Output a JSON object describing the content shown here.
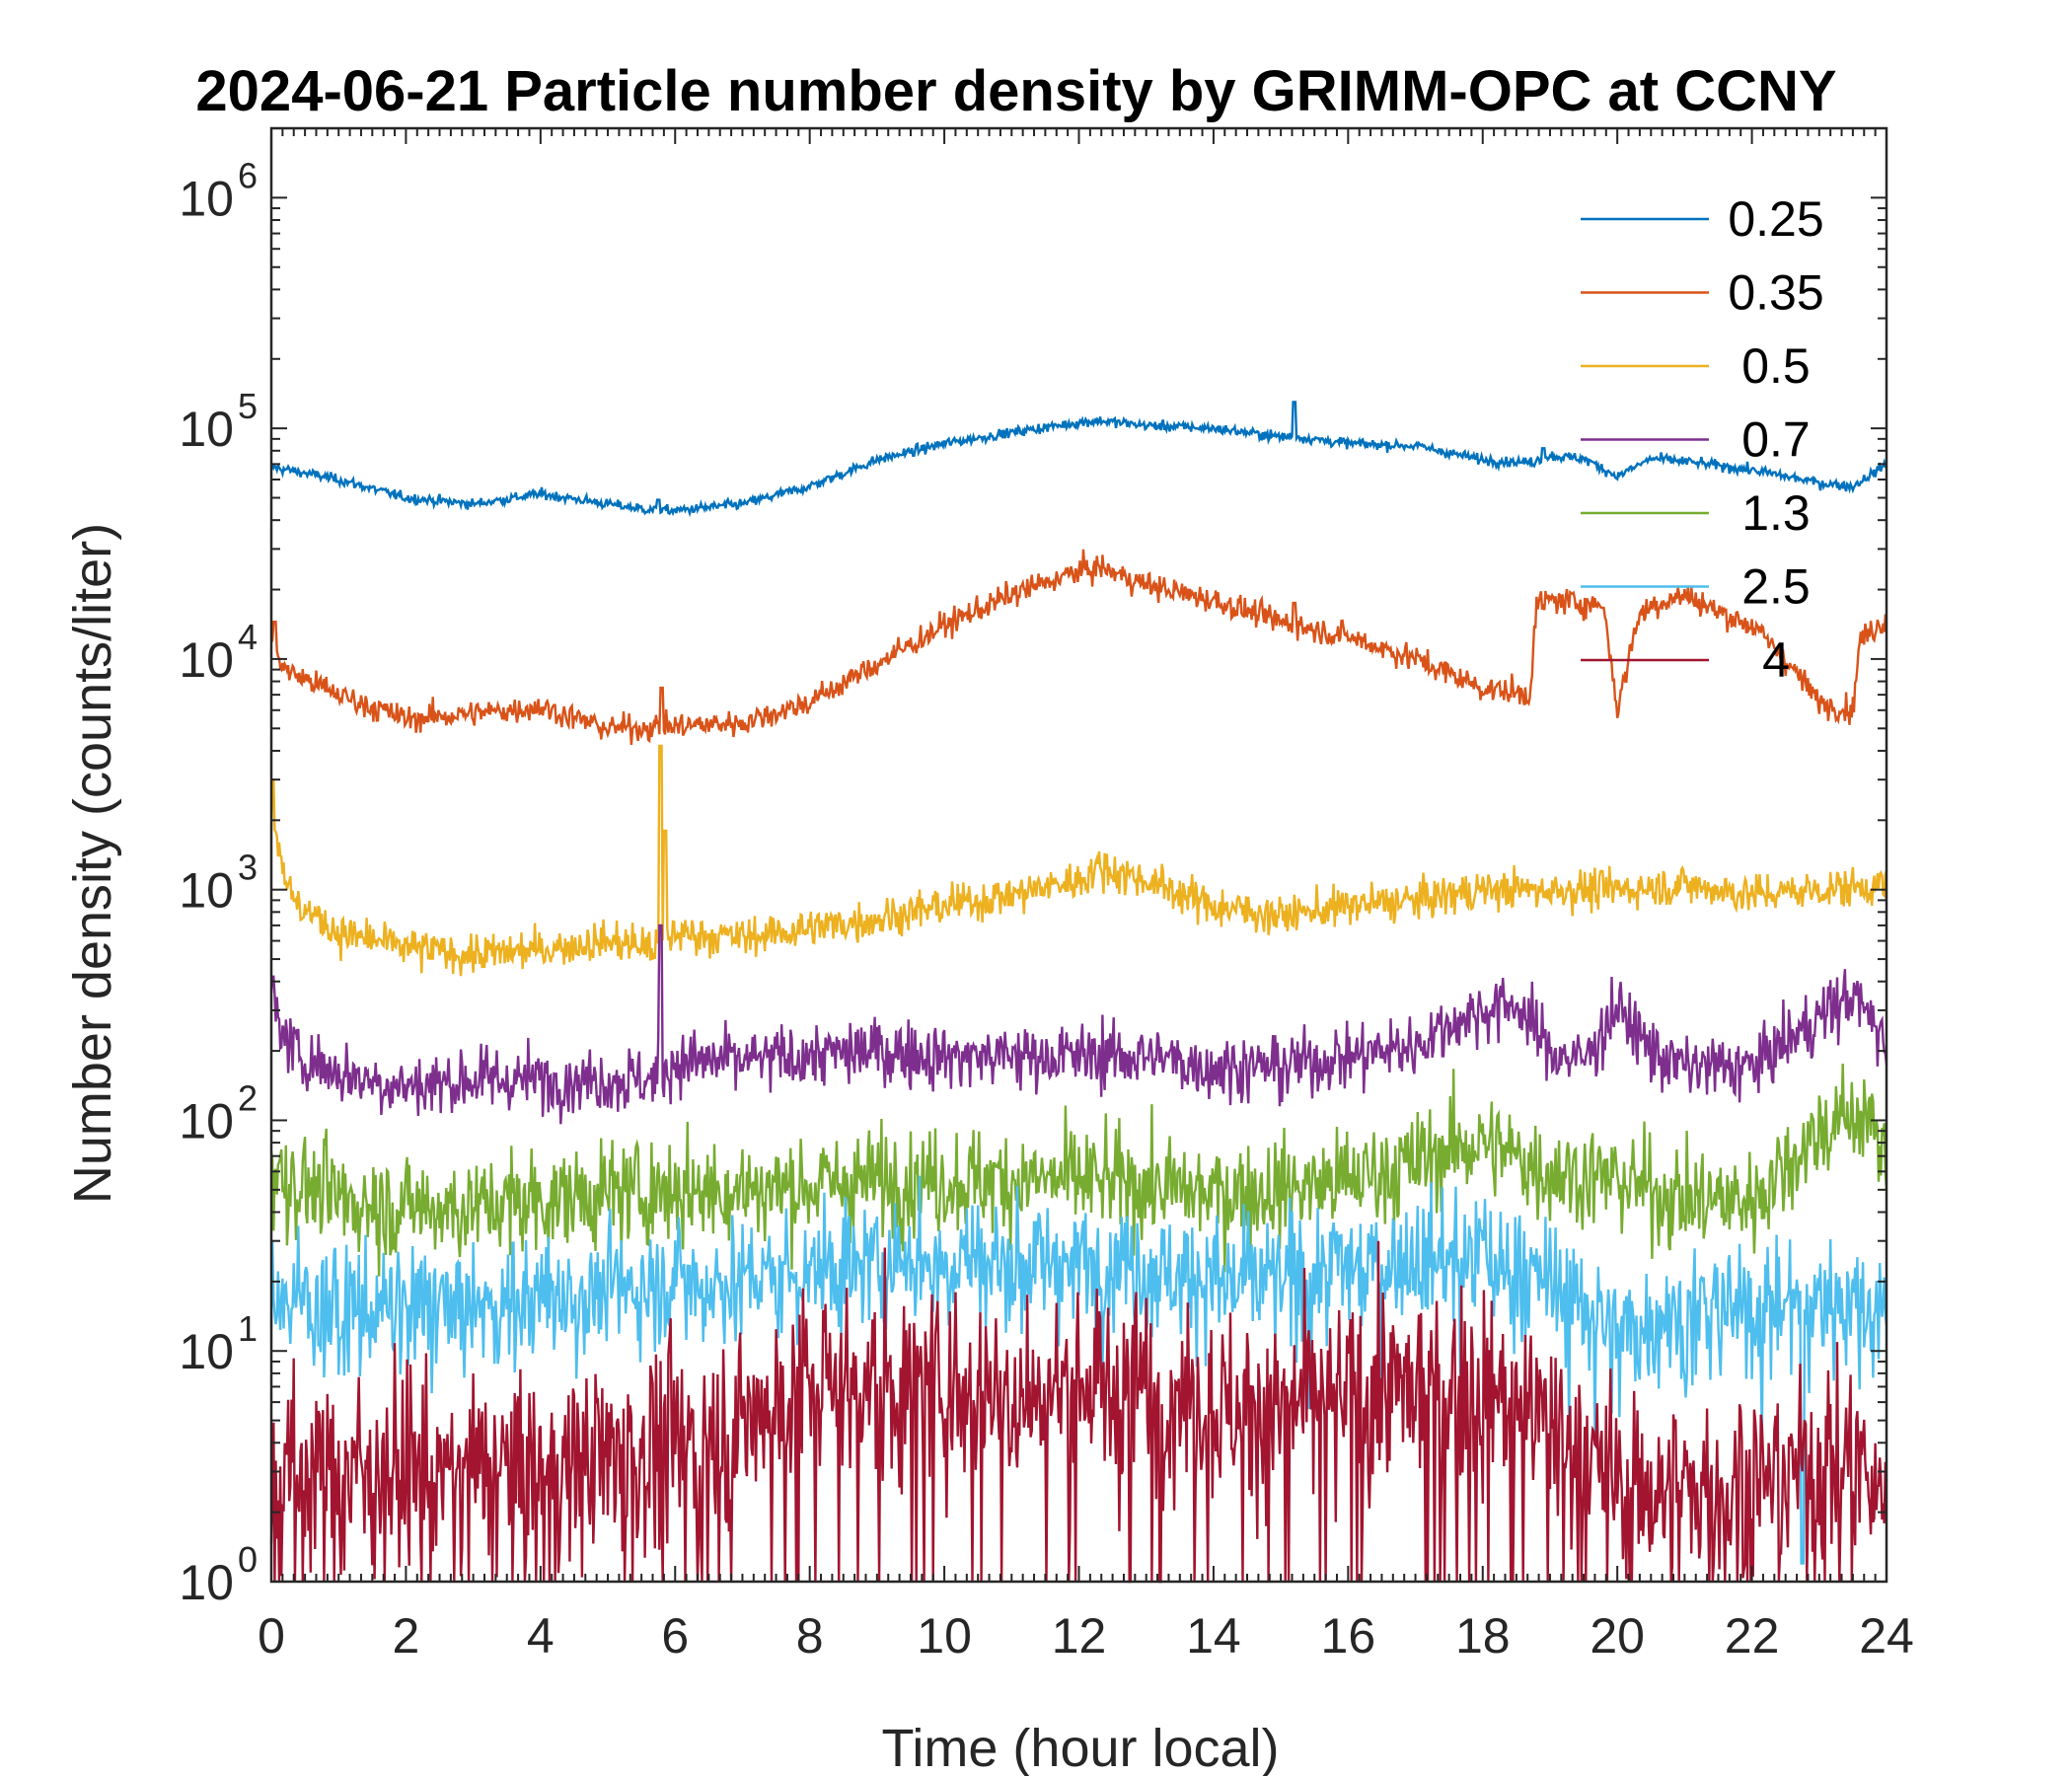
{
  "chart_data": {
    "type": "line",
    "title": "2024-06-21 Particle number density by GRIMM-OPC at CCNY",
    "xlabel": "Time (hour local)",
    "ylabel": "Number density (counts/liter)",
    "xlim": [
      0,
      24
    ],
    "ylim": [
      1,
      2000000
    ],
    "yscale": "log",
    "xticks": [
      0,
      2,
      4,
      6,
      8,
      10,
      12,
      14,
      16,
      18,
      20,
      22,
      24
    ],
    "yticks": [
      {
        "value": 1,
        "base": "10",
        "exp": "0"
      },
      {
        "value": 10,
        "base": "10",
        "exp": "1"
      },
      {
        "value": 100,
        "base": "10",
        "exp": "2"
      },
      {
        "value": 1000,
        "base": "10",
        "exp": "3"
      },
      {
        "value": 10000,
        "base": "10",
        "exp": "4"
      },
      {
        "value": 100000,
        "base": "10",
        "exp": "5"
      },
      {
        "value": 1000000,
        "base": "10",
        "exp": "6"
      }
    ],
    "legend_position": "top-right",
    "series": [
      {
        "name": "0.25",
        "color": "#0072BD",
        "noise": 0.015,
        "x": [
          0,
          0.5,
          1,
          2,
          3,
          4,
          5,
          5.7,
          6,
          7,
          8,
          9,
          10,
          11,
          12,
          12.3,
          13,
          14,
          15,
          15.2,
          16,
          17,
          18,
          18.7,
          19,
          19.5,
          20,
          20.5,
          21,
          22,
          22.5,
          23,
          23.5,
          24
        ],
        "y": [
          68000,
          64000,
          60000,
          50000,
          47000,
          52000,
          47000,
          44000,
          44000,
          47000,
          56000,
          73000,
          86000,
          96000,
          106000,
          108000,
          103000,
          100000,
          92000,
          92000,
          86000,
          84000,
          73000,
          71000,
          76000,
          74000,
          62000,
          74000,
          72000,
          66000,
          62000,
          58000,
          56000,
          70000
        ],
        "spikes": [
          {
            "x": 15.2,
            "y": 130000
          },
          {
            "x": 5.75,
            "y": 49000
          },
          {
            "x": 18.9,
            "y": 82000
          }
        ]
      },
      {
        "name": "0.35",
        "color": "#D95319",
        "noise": 0.04,
        "x": [
          0,
          0.2,
          1,
          2,
          3,
          4,
          5,
          6,
          7,
          8,
          9,
          10,
          11,
          12,
          12.3,
          13,
          14,
          15,
          16,
          17,
          18,
          18.7,
          18.8,
          19,
          19.5,
          19.8,
          20,
          20.3,
          20.5,
          21,
          21.5,
          22,
          22.5,
          23,
          23.5,
          23.6,
          24
        ],
        "y": [
          12000,
          9000,
          7000,
          5500,
          5800,
          6200,
          5000,
          5100,
          5300,
          6500,
          9500,
          14000,
          19000,
          24000,
          25000,
          21000,
          18000,
          14500,
          12500,
          10000,
          7500,
          7000,
          17000,
          18000,
          17500,
          17000,
          6000,
          15000,
          17000,
          19000,
          16000,
          14000,
          10000,
          6500,
          6000,
          12000,
          15000
        ],
        "spikes": [
          {
            "x": 5.8,
            "y": 7500
          },
          {
            "x": 15.2,
            "y": 17500
          },
          {
            "x": 0.05,
            "y": 14500
          }
        ]
      },
      {
        "name": "0.5",
        "color": "#EDB120",
        "noise": 0.06,
        "x": [
          0,
          0.3,
          1,
          2,
          3,
          4,
          5,
          5.7,
          6,
          7,
          8,
          9,
          10,
          11,
          12,
          12.3,
          13,
          14,
          15,
          16,
          17,
          18,
          19,
          20,
          21,
          22,
          23,
          24
        ],
        "y": [
          2200,
          900,
          650,
          560,
          520,
          550,
          600,
          560,
          650,
          620,
          680,
          750,
          850,
          950,
          1100,
          1250,
          1100,
          850,
          770,
          850,
          900,
          1000,
          1000,
          1000,
          1050,
          950,
          1000,
          1050
        ],
        "spikes": [
          {
            "x": 5.78,
            "y": 4200
          },
          {
            "x": 5.85,
            "y": 1800
          },
          {
            "x": 0.02,
            "y": 3000
          }
        ]
      },
      {
        "name": "0.7",
        "color": "#7E2F8E",
        "noise": 0.1,
        "x": [
          0,
          0.3,
          1,
          2,
          3,
          4,
          5,
          5.7,
          6,
          7,
          8,
          9,
          10,
          11,
          12,
          13,
          14,
          15,
          16,
          17,
          17.5,
          18,
          18.5,
          19,
          19.5,
          20,
          20.5,
          21,
          22,
          23,
          23.5,
          24
        ],
        "y": [
          320,
          200,
          160,
          140,
          150,
          150,
          150,
          150,
          180,
          180,
          190,
          200,
          190,
          190,
          190,
          190,
          170,
          170,
          190,
          210,
          260,
          300,
          320,
          200,
          180,
          310,
          200,
          170,
          170,
          280,
          350,
          220
        ],
        "spikes": [
          {
            "x": 5.78,
            "y": 700
          },
          {
            "x": 0.02,
            "y": 420
          }
        ]
      },
      {
        "name": "1.3",
        "color": "#77AC30",
        "noise": 0.16,
        "x": [
          0,
          1,
          2,
          3,
          4,
          5,
          6,
          7,
          8,
          9,
          10,
          11,
          12,
          13,
          14,
          15,
          16,
          17,
          17.5,
          18,
          19,
          20,
          21,
          22,
          23,
          23.7,
          24
        ],
        "y": [
          60,
          45,
          42,
          42,
          45,
          48,
          50,
          50,
          52,
          55,
          55,
          55,
          55,
          52,
          48,
          50,
          55,
          65,
          75,
          80,
          60,
          55,
          45,
          45,
          90,
          110,
          60
        ],
        "spikes": []
      },
      {
        "name": "2.5",
        "color": "#4DBEEE",
        "noise": 0.2,
        "x": [
          0,
          1,
          2,
          3,
          4,
          5,
          6,
          7,
          8,
          9,
          10,
          11,
          12,
          13,
          14,
          15,
          16,
          17,
          18,
          19,
          20,
          21,
          22,
          23,
          24
        ],
        "y": [
          18,
          15,
          15,
          15,
          17,
          18,
          20,
          20,
          22,
          24,
          25,
          25,
          24,
          23,
          20,
          20,
          23,
          25,
          25,
          20,
          12,
          15,
          15,
          17,
          15
        ],
        "spikes": [
          {
            "x": 22.75,
            "y": 1.2
          }
        ]
      },
      {
        "name": "4",
        "color": "#A2142F",
        "noise": 0.3,
        "x": [
          0,
          1,
          2,
          3,
          4,
          5,
          6,
          7,
          8,
          9,
          10,
          11,
          12,
          13,
          14,
          15,
          16,
          17,
          18,
          19,
          20,
          21,
          22,
          23,
          24
        ],
        "y": [
          3,
          3,
          3,
          3,
          3,
          3.5,
          4,
          5,
          7,
          7,
          7,
          6.5,
          7,
          7,
          6,
          5.5,
          6,
          7,
          7,
          5,
          2.5,
          2.5,
          2.5,
          3.5,
          2.5
        ],
        "spikes": []
      }
    ]
  }
}
